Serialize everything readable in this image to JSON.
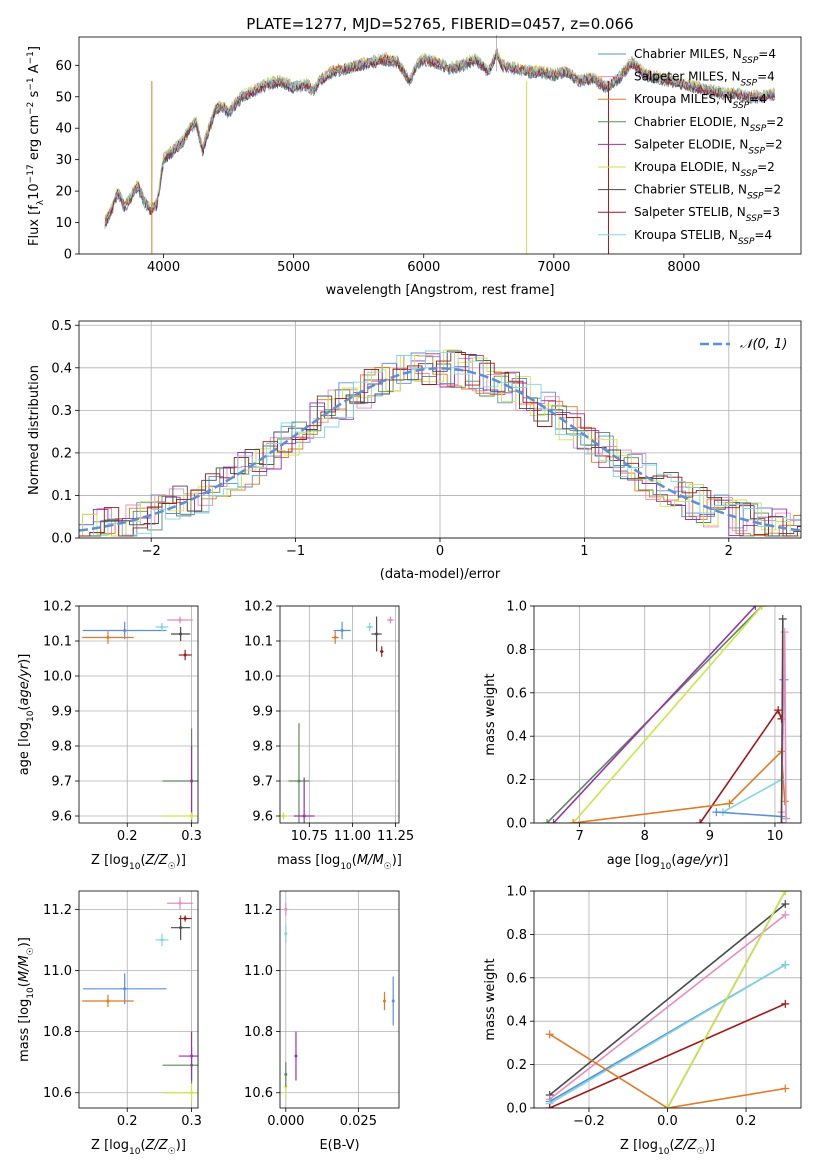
{
  "chart_data": [
    {
      "id": "spectrum",
      "type": "line",
      "title": "PLATE=1277, MJD=52765, FIBERID=0457, z=0.066",
      "xlabel": "wavelength [Angstrom, rest frame]",
      "ylabel": "Flux [f_λ 10^-17 erg cm^-2 s^-1 A^-1]",
      "xlim": [
        3350,
        8900
      ],
      "ylim": [
        0,
        69
      ],
      "xticks": [
        4000,
        5000,
        6000,
        7000,
        8000
      ],
      "yticks": [
        0,
        10,
        20,
        30,
        40,
        50,
        60
      ],
      "grid": false,
      "legend_placement": "top-right",
      "spectrum_x": [
        3550,
        3600,
        3650,
        3700,
        3750,
        3800,
        3850,
        3900,
        3950,
        4000,
        4050,
        4100,
        4150,
        4200,
        4250,
        4300,
        4350,
        4400,
        4450,
        4500,
        4600,
        4700,
        4800,
        4900,
        5000,
        5100,
        5150,
        5200,
        5300,
        5400,
        5500,
        5600,
        5700,
        5800,
        5890,
        5950,
        6000,
        6100,
        6200,
        6300,
        6400,
        6500,
        6563,
        6600,
        6700,
        6800,
        6900,
        7000,
        7100,
        7200,
        7300,
        7400,
        7500,
        7600,
        7700,
        7800,
        7900,
        8000,
        8100,
        8200,
        8300,
        8400,
        8500,
        8600,
        8700
      ],
      "spectrum_y": [
        10,
        14,
        20,
        15,
        18,
        22,
        17,
        14,
        16,
        30,
        32,
        34,
        36,
        40,
        42,
        33,
        40,
        46,
        47,
        45,
        50,
        52,
        54,
        55,
        53,
        54,
        52,
        55,
        58,
        59,
        60,
        61,
        62,
        61,
        55,
        60,
        62,
        61,
        59,
        60,
        62,
        58,
        64,
        60,
        59,
        58,
        58,
        57,
        58,
        55,
        56,
        53,
        56,
        61,
        57,
        56,
        55,
        54,
        53,
        52,
        51,
        51,
        50,
        50,
        51
      ],
      "series": [
        {
          "name": "Chabrier MILES, N_SSP=4",
          "color": "#5b8fd9"
        },
        {
          "name": "Salpeter MILES, N_SSP=4",
          "color": "#e88bbe"
        },
        {
          "name": "Kroupa MILES, N_SSP=4",
          "color": "#e07a26"
        },
        {
          "name": "Chabrier ELODIE, N_SSP=2",
          "color": "#5a8a5a"
        },
        {
          "name": "Salpeter ELODIE, N_SSP=2",
          "color": "#9b30b0"
        },
        {
          "name": "Kroupa ELODIE, N_SSP=2",
          "color": "#cfe34a"
        },
        {
          "name": "Chabrier STELIB, N_SSP=2",
          "color": "#4a4a4a"
        },
        {
          "name": "Salpeter STELIB, N_SSP=3",
          "color": "#a01818"
        },
        {
          "name": "Kroupa STELIB, N_SSP=4",
          "color": "#7fd6e0"
        }
      ],
      "data_color": "#aaaaaa"
    },
    {
      "id": "residuals",
      "type": "line",
      "xlabel": "(data-model)/error",
      "ylabel": "Normed distribution",
      "xlim": [
        -2.5,
        2.5
      ],
      "ylim": [
        0,
        0.51
      ],
      "xticks": [
        -2,
        -1,
        0,
        1,
        2
      ],
      "yticks": [
        0.0,
        0.1,
        0.2,
        0.3,
        0.4,
        0.5
      ],
      "grid": true,
      "legend_placement": "top-right",
      "legend": "𝒩(0, 1)",
      "gauss_color": "#5b8fd9"
    },
    {
      "id": "age-vs-Z",
      "type": "scatter",
      "xlabel": "Z [log10(Z/Z☉)]",
      "ylabel": "age [log10(age/yr)]",
      "xlim": [
        0.125,
        0.31
      ],
      "ylim": [
        9.58,
        10.2
      ],
      "xticks": [
        0.2,
        0.3
      ],
      "yticks": [
        9.6,
        9.7,
        9.8,
        9.9,
        10.0,
        10.1,
        10.2
      ],
      "grid": true,
      "points": [
        {
          "color": "#5b8fd9",
          "x": 0.196,
          "xerr": 0.065,
          "y": 10.13,
          "yerr": 0.025
        },
        {
          "color": "#e07a26",
          "x": 0.17,
          "xerr": 0.04,
          "y": 10.11,
          "yerr": 0.018
        },
        {
          "color": "#7fd6e0",
          "x": 0.254,
          "xerr": 0.01,
          "y": 10.14,
          "yerr": 0.012
        },
        {
          "color": "#e88bbe",
          "x": 0.282,
          "xerr": 0.02,
          "y": 10.16,
          "yerr": 0.01
        },
        {
          "color": "#4a4a4a",
          "x": 0.283,
          "xerr": 0.015,
          "y": 10.12,
          "yerr": 0.02
        },
        {
          "color": "#a01818",
          "x": 0.29,
          "xerr": 0.01,
          "y": 10.06,
          "yerr": 0.015
        },
        {
          "color": "#5a8a5a",
          "x": 0.3,
          "xerr": 0.045,
          "y": 9.7,
          "yerr": 0.15
        },
        {
          "color": "#9b30b0",
          "x": 0.3,
          "xerr": 0.0,
          "y": 9.7,
          "yerr": 0.1
        },
        {
          "color": "#cfe34a",
          "x": 0.3,
          "xerr": 0.045,
          "y": 9.6,
          "yerr": 0.01
        }
      ]
    },
    {
      "id": "age-vs-mass",
      "type": "scatter",
      "xlabel": "mass [log10(M/M☉)]",
      "xlim": [
        10.58,
        11.27
      ],
      "ylim": [
        9.58,
        10.2
      ],
      "xticks": [
        10.75,
        11.0,
        11.25
      ],
      "tick_labels": [
        "10.75",
        "11.00",
        "11.25"
      ],
      "yticks": [
        9.6,
        9.7,
        9.8,
        9.9,
        10.0,
        10.1,
        10.2
      ],
      "grid": true,
      "points": [
        {
          "color": "#5b8fd9",
          "x": 10.94,
          "xerr": 0.05,
          "y": 10.13,
          "yerr": 0.025
        },
        {
          "color": "#e07a26",
          "x": 10.9,
          "xerr": 0.02,
          "y": 10.11,
          "yerr": 0.018
        },
        {
          "color": "#7fd6e0",
          "x": 11.1,
          "xerr": 0.02,
          "y": 10.14,
          "yerr": 0.012
        },
        {
          "color": "#e88bbe",
          "x": 11.22,
          "xerr": 0.02,
          "y": 10.16,
          "yerr": 0.01
        },
        {
          "color": "#4a4a4a",
          "x": 11.14,
          "xerr": 0.03,
          "y": 10.12,
          "yerr": 0.05
        },
        {
          "color": "#a01818",
          "x": 11.17,
          "xerr": 0.01,
          "y": 10.07,
          "yerr": 0.015
        },
        {
          "color": "#5a8a5a",
          "x": 10.69,
          "xerr": 0.06,
          "y": 9.7,
          "yerr": 0.165
        },
        {
          "color": "#9b30b0",
          "x": 10.72,
          "xerr": 0.06,
          "y": 9.6,
          "yerr": 0.11
        },
        {
          "color": "#cfe34a",
          "x": 10.6,
          "xerr": 0.02,
          "y": 9.6,
          "yerr": 0.01
        }
      ]
    },
    {
      "id": "weight-vs-age",
      "type": "line",
      "xlabel": "age  [log10(age/yr)]",
      "ylabel": "mass weight",
      "xlim": [
        6.3,
        10.4
      ],
      "ylim": [
        0,
        1
      ],
      "xticks": [
        7,
        8,
        9,
        10
      ],
      "yticks": [
        0.0,
        0.2,
        0.4,
        0.6,
        0.8,
        1.0
      ],
      "grid": true,
      "series": [
        {
          "color": "#5a8a5a",
          "x": [
            6.5,
            9.8
          ],
          "y": [
            0.0,
            1.0
          ]
        },
        {
          "color": "#9b30b0",
          "x": [
            6.6,
            9.7
          ],
          "y": [
            0.0,
            1.0
          ]
        },
        {
          "color": "#cfe34a",
          "x": [
            6.9,
            9.8
          ],
          "y": [
            0.0,
            1.0
          ]
        },
        {
          "color": "#a01818",
          "x": [
            8.85,
            10.05,
            10.1
          ],
          "y": [
            0.0,
            0.52,
            0.48
          ]
        },
        {
          "color": "#e07a26",
          "x": [
            6.9,
            9.3,
            10.1,
            10.15
          ],
          "y": [
            0.0,
            0.09,
            0.33,
            0.1
          ]
        },
        {
          "color": "#7fd6e0",
          "x": [
            9.2,
            10.1,
            10.15
          ],
          "y": [
            0.05,
            0.2,
            0.66
          ]
        },
        {
          "color": "#5b8fd9",
          "x": [
            9.1,
            10.1,
            10.13
          ],
          "y": [
            0.05,
            0.03,
            0.66
          ]
        },
        {
          "color": "#e88bbe",
          "x": [
            10.1,
            10.15,
            10.17
          ],
          "y": [
            0.05,
            0.88,
            0.02
          ]
        },
        {
          "color": "#4a4a4a",
          "x": [
            10.1,
            10.12
          ],
          "y": [
            0.0,
            0.94
          ]
        }
      ]
    },
    {
      "id": "mass-vs-Z",
      "type": "scatter",
      "xlabel": "Z [log10(Z/Z☉)]",
      "ylabel": "mass [log10(M/M☉)]",
      "xlim": [
        0.125,
        0.31
      ],
      "ylim": [
        10.55,
        11.26
      ],
      "xticks": [
        0.2,
        0.3
      ],
      "yticks": [
        10.6,
        10.8,
        11.0,
        11.2
      ],
      "grid": true,
      "points": [
        {
          "color": "#5b8fd9",
          "x": 0.196,
          "xerr": 0.065,
          "y": 10.94,
          "yerr": 0.05
        },
        {
          "color": "#e07a26",
          "x": 0.17,
          "xerr": 0.04,
          "y": 10.9,
          "yerr": 0.02
        },
        {
          "color": "#7fd6e0",
          "x": 0.254,
          "xerr": 0.01,
          "y": 11.1,
          "yerr": 0.02
        },
        {
          "color": "#e88bbe",
          "x": 0.282,
          "xerr": 0.02,
          "y": 11.22,
          "yerr": 0.02
        },
        {
          "color": "#4a4a4a",
          "x": 0.283,
          "xerr": 0.015,
          "y": 11.14,
          "yerr": 0.04
        },
        {
          "color": "#a01818",
          "x": 0.29,
          "xerr": 0.01,
          "y": 11.17,
          "yerr": 0.01
        },
        {
          "color": "#5a8a5a",
          "x": 0.3,
          "xerr": 0.045,
          "y": 10.69,
          "yerr": 0.06
        },
        {
          "color": "#9b30b0",
          "x": 0.3,
          "xerr": 0.02,
          "y": 10.72,
          "yerr": 0.08
        },
        {
          "color": "#cfe34a",
          "x": 0.3,
          "xerr": 0.045,
          "y": 10.6,
          "yerr": 0.03
        }
      ]
    },
    {
      "id": "mass-vs-ebv",
      "type": "scatter",
      "xlabel": "E(B-V)",
      "xlim": [
        -0.002,
        0.039
      ],
      "ylim": [
        10.55,
        11.26
      ],
      "xticks": [
        0.0,
        0.025
      ],
      "tick_labels": [
        "0.000",
        "0.025"
      ],
      "yticks": [
        10.6,
        10.8,
        11.0,
        11.2
      ],
      "grid": true,
      "points": [
        {
          "color": "#5b8fd9",
          "x": 0.037,
          "y": 10.9,
          "yerr": 0.08
        },
        {
          "color": "#e07a26",
          "x": 0.034,
          "y": 10.9,
          "yerr": 0.03
        },
        {
          "color": "#9b30b0",
          "x": 0.0035,
          "y": 10.72,
          "yerr": 0.08
        },
        {
          "color": "#e88bbe",
          "x": 0.0,
          "y": 11.2,
          "yerr": 0.02
        },
        {
          "color": "#7fd6e0",
          "x": 0.0,
          "y": 11.12,
          "yerr": 0.03
        },
        {
          "color": "#cfe34a",
          "x": 0.0,
          "y": 10.62,
          "yerr": 0.04
        },
        {
          "color": "#5a8a5a",
          "x": 0.0,
          "y": 10.66,
          "yerr": 0.04
        }
      ]
    },
    {
      "id": "weight-vs-Z",
      "type": "line",
      "xlabel": "Z [log10(Z/Z☉)]",
      "ylabel": "mass weight",
      "xlim": [
        -0.34,
        0.34
      ],
      "ylim": [
        0,
        1
      ],
      "xticks": [
        -0.2,
        0.0,
        0.2
      ],
      "tick_labels": [
        "−0.2",
        "0.0",
        "0.2"
      ],
      "yticks": [
        0.0,
        0.2,
        0.4,
        0.6,
        0.8,
        1.0
      ],
      "grid": true,
      "series": [
        {
          "color": "#4a4a4a",
          "x": [
            -0.3,
            0.3
          ],
          "y": [
            0.06,
            0.94
          ]
        },
        {
          "color": "#e88bbe",
          "x": [
            -0.3,
            0.3
          ],
          "y": [
            0.04,
            0.89
          ]
        },
        {
          "color": "#5b8fd9",
          "x": [
            -0.3,
            0.3
          ],
          "y": [
            0.03,
            0.66
          ]
        },
        {
          "color": "#7fd6e0",
          "x": [
            -0.3,
            0.3
          ],
          "y": [
            0.02,
            0.66
          ]
        },
        {
          "color": "#a01818",
          "x": [
            -0.3,
            0.3
          ],
          "y": [
            0.0,
            0.48
          ]
        },
        {
          "color": "#e07a26",
          "x": [
            -0.3,
            0.0,
            0.3
          ],
          "y": [
            0.34,
            0.0,
            0.09
          ]
        },
        {
          "color": "#5a8a5a",
          "x": [
            0.0,
            0.3
          ],
          "y": [
            0.0,
            1.0
          ]
        },
        {
          "color": "#cfe34a",
          "x": [
            0.0,
            0.3
          ],
          "y": [
            0.0,
            1.0
          ]
        }
      ]
    }
  ]
}
